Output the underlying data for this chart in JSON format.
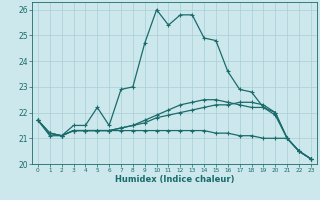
{
  "xlabel": "Humidex (Indice chaleur)",
  "background_color": "#cce8ec",
  "grid_color": "#aacdd4",
  "line_color": "#1a6b6b",
  "xlim": [
    -0.5,
    23.5
  ],
  "ylim": [
    20.0,
    26.3
  ],
  "yticks": [
    20,
    21,
    22,
    23,
    24,
    25,
    26
  ],
  "xticks": [
    0,
    1,
    2,
    3,
    4,
    5,
    6,
    7,
    8,
    9,
    10,
    11,
    12,
    13,
    14,
    15,
    16,
    17,
    18,
    19,
    20,
    21,
    22,
    23
  ],
  "series": [
    [
      21.7,
      21.1,
      21.1,
      21.5,
      21.5,
      22.2,
      21.5,
      22.9,
      23.0,
      24.7,
      26.0,
      25.4,
      25.8,
      25.8,
      24.9,
      24.8,
      23.6,
      22.9,
      22.8,
      22.2,
      21.9,
      21.0,
      20.5,
      20.2
    ],
    [
      21.7,
      21.2,
      21.1,
      21.3,
      21.3,
      21.3,
      21.3,
      21.4,
      21.5,
      21.7,
      21.9,
      22.1,
      22.3,
      22.4,
      22.5,
      22.5,
      22.4,
      22.3,
      22.2,
      22.2,
      22.0,
      21.0,
      20.5,
      20.2
    ],
    [
      21.7,
      21.2,
      21.1,
      21.3,
      21.3,
      21.3,
      21.3,
      21.4,
      21.5,
      21.6,
      21.8,
      21.9,
      22.0,
      22.1,
      22.2,
      22.3,
      22.3,
      22.4,
      22.4,
      22.3,
      22.0,
      21.0,
      20.5,
      20.2
    ],
    [
      21.7,
      21.2,
      21.1,
      21.3,
      21.3,
      21.3,
      21.3,
      21.3,
      21.3,
      21.3,
      21.3,
      21.3,
      21.3,
      21.3,
      21.3,
      21.2,
      21.2,
      21.1,
      21.1,
      21.0,
      21.0,
      21.0,
      20.5,
      20.2
    ]
  ]
}
